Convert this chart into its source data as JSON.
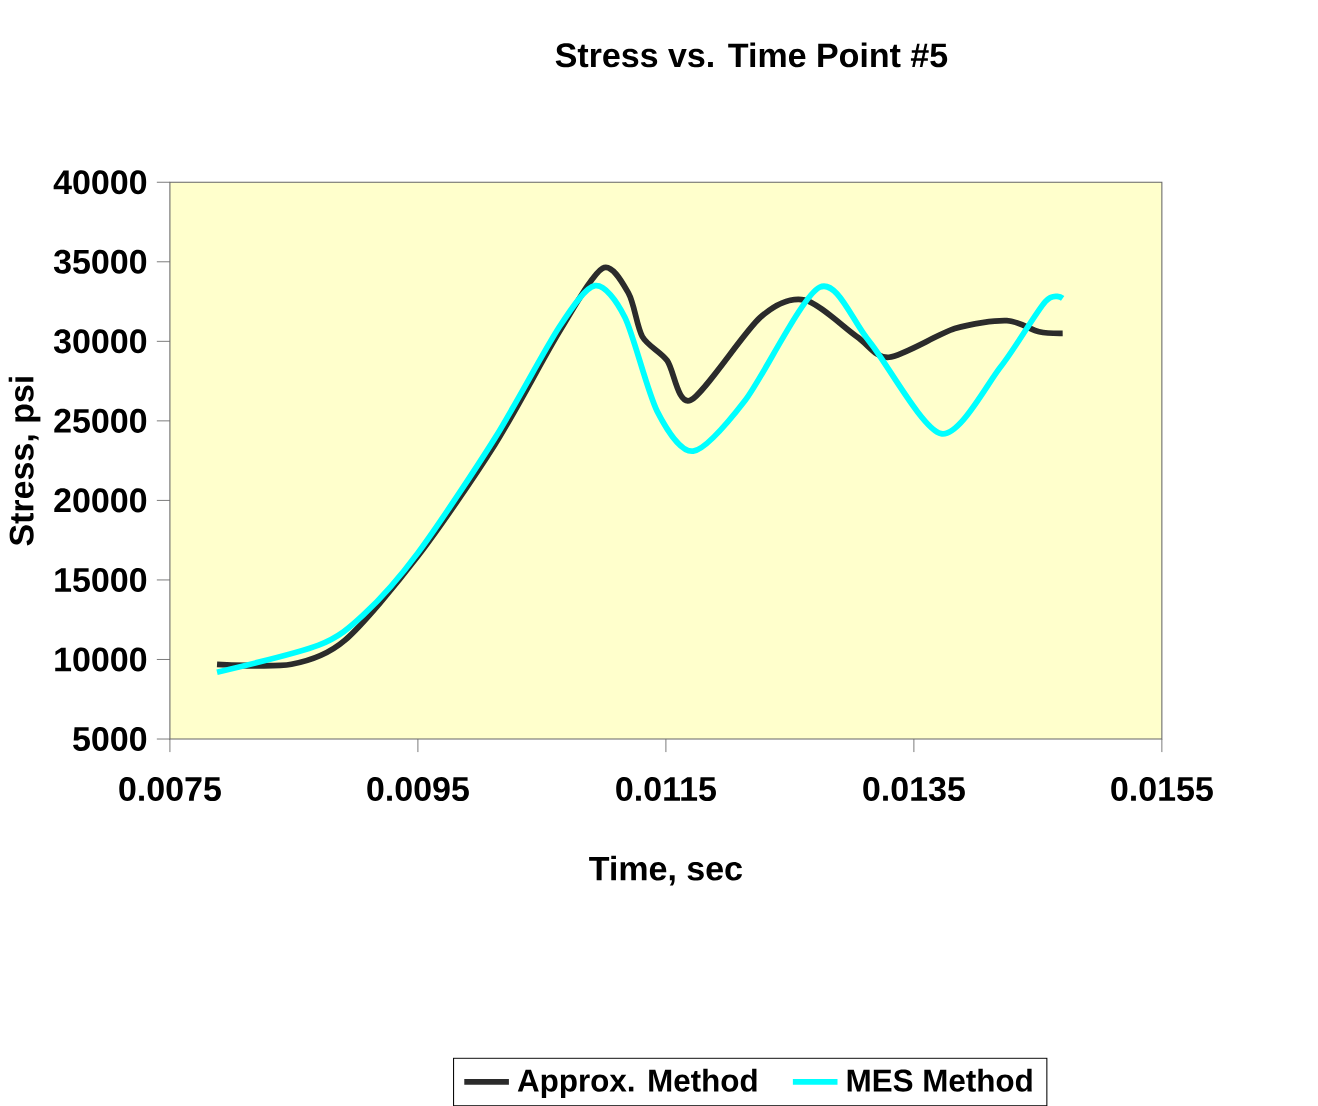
{
  "chart_data": {
    "type": "line",
    "title": "Stress vs. Time Point #5",
    "xlabel": "Time, sec",
    "ylabel": "Stress, psi",
    "xlim": [
      0.0075,
      0.0155
    ],
    "xticks": [
      0.0075,
      0.0095,
      0.0115,
      0.0135,
      0.0155
    ],
    "ylim": [
      5000,
      40000
    ],
    "yticks": [
      5000,
      10000,
      15000,
      20000,
      25000,
      30000,
      35000,
      40000
    ],
    "legend": "bottom",
    "grid": false,
    "marker": "none",
    "line_style": "solid",
    "series": [
      {
        "name": "Approx. Method",
        "color": "#2b2b2b",
        "x": [
          0.00788,
          0.00848,
          0.00891,
          0.0095,
          0.01012,
          0.01064,
          0.01099,
          0.0112,
          0.01131,
          0.01151,
          0.0117,
          0.01226,
          0.01262,
          0.01304,
          0.0133,
          0.01383,
          0.01425,
          0.01451,
          0.0147
        ],
        "values": [
          9700,
          9700,
          11200,
          16500,
          23500,
          30600,
          34600,
          33000,
          30300,
          28800,
          26300,
          31500,
          32600,
          30300,
          29000,
          30800,
          31300,
          30600,
          30500
        ]
      },
      {
        "name": "MES Method",
        "color": "#00ffff",
        "x": [
          0.00788,
          0.0087,
          0.00906,
          0.0095,
          0.01012,
          0.01064,
          0.01093,
          0.01117,
          0.01143,
          0.01172,
          0.01214,
          0.01274,
          0.01314,
          0.01372,
          0.0142,
          0.01456,
          0.0147
        ],
        "values": [
          9200,
          10900,
          12800,
          16700,
          23900,
          30900,
          33500,
          31500,
          25600,
          23100,
          26300,
          33400,
          30000,
          24200,
          28400,
          32500,
          32700
        ]
      }
    ]
  }
}
